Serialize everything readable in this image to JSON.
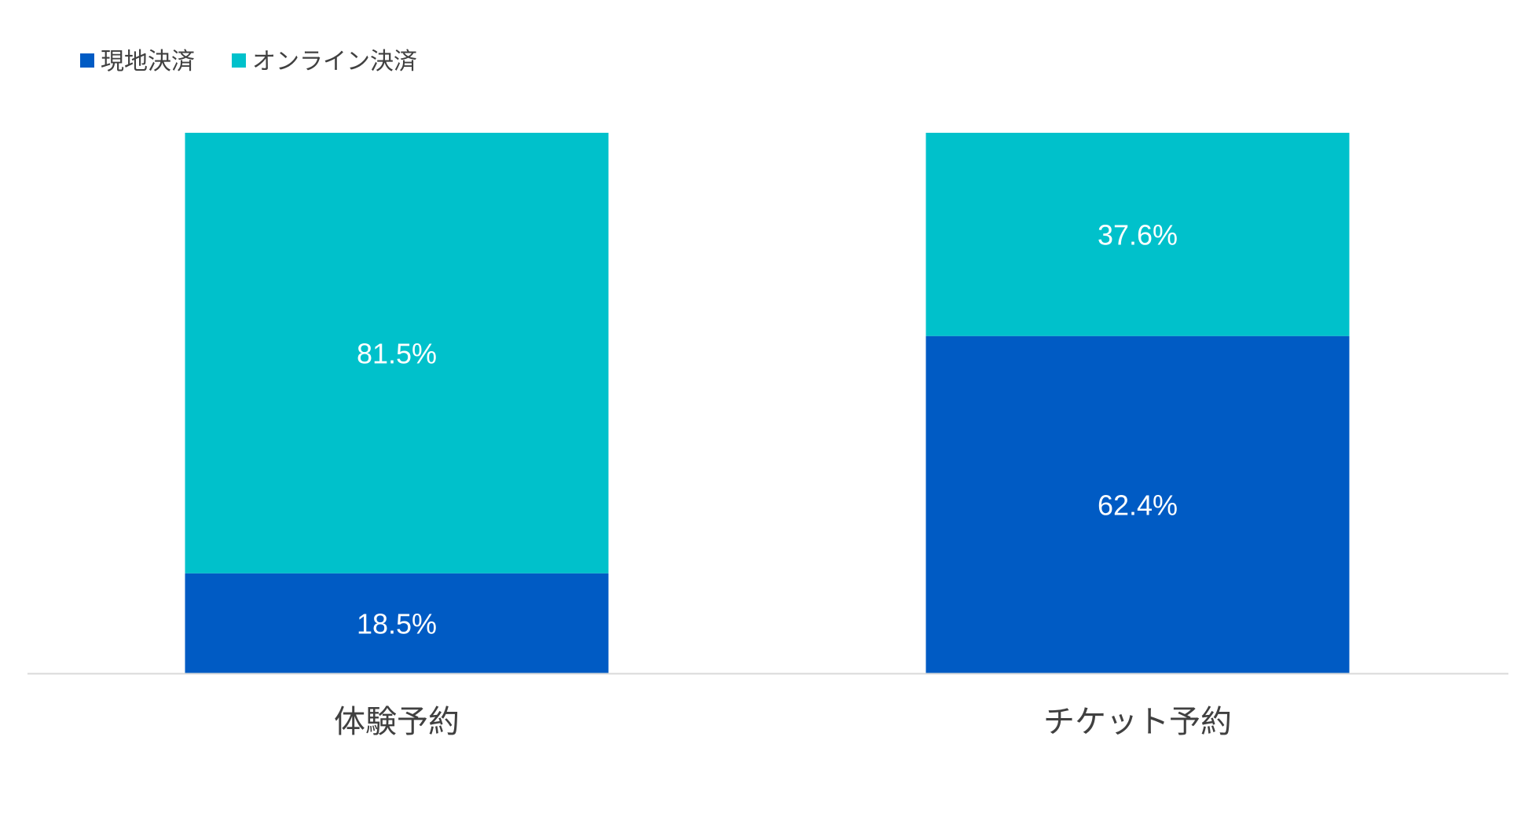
{
  "chart_data": {
    "type": "bar",
    "stacked": true,
    "percent": true,
    "categories": [
      "体験予約",
      "チケット予約"
    ],
    "series": [
      {
        "name": "現地決済",
        "values": [
          18.5,
          62.4
        ],
        "labels": [
          "18.5%",
          "62.4%"
        ],
        "color": "#005bc4"
      },
      {
        "name": "オンライン決済",
        "values": [
          81.5,
          37.6
        ],
        "labels": [
          "81.5%",
          "37.6%"
        ],
        "color": "#00c1cb"
      }
    ],
    "ylim": [
      0,
      100
    ],
    "grid": false,
    "legend_position": "top-left",
    "axis_color": "#d9d9d9"
  }
}
